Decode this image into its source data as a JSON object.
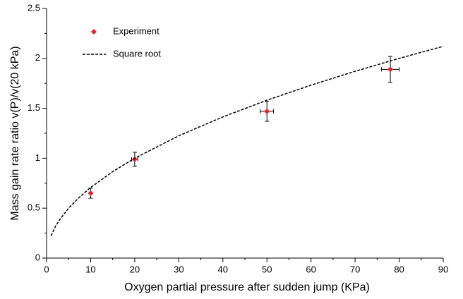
{
  "chart_data": {
    "type": "scatter",
    "x_label": "Oxygen partial pressure after sudden jump (KPa)",
    "y_label": "Mass gain rate ratio v(P)/v(20 kPa)",
    "xlim": [
      0,
      90
    ],
    "ylim": [
      0,
      2.5
    ],
    "xticks": [
      0,
      10,
      20,
      30,
      40,
      50,
      60,
      70,
      80,
      90
    ],
    "yticks": [
      0,
      0.5,
      1,
      1.5,
      2,
      2.5
    ],
    "xminorticks": [
      5,
      15,
      25,
      35,
      45,
      55,
      65,
      75,
      85
    ],
    "yminorticks": [
      0.25,
      0.75,
      1.25,
      1.75,
      2.25
    ],
    "legend": "upper left",
    "series": [
      {
        "name": "Experiment",
        "color": "#e8202a",
        "marker": "diamond",
        "x": [
          10,
          20,
          50,
          78
        ],
        "values": [
          0.65,
          0.99,
          1.47,
          1.89
        ],
        "y_errors": [
          0.05,
          0.07,
          0.1,
          0.13
        ],
        "x_errors": [
          0,
          0.7,
          1.5,
          2
        ]
      },
      {
        "name": "Square root",
        "color": "#000000",
        "line": "dashed",
        "x": [
          1,
          2,
          3,
          5,
          7.5,
          10,
          15,
          20,
          30,
          40,
          50,
          60,
          70,
          80,
          90
        ],
        "values": [
          0.224,
          0.316,
          0.387,
          0.5,
          0.612,
          0.707,
          0.866,
          1,
          1.225,
          1.414,
          1.581,
          1.732,
          1.871,
          2,
          2.121
        ]
      }
    ]
  }
}
